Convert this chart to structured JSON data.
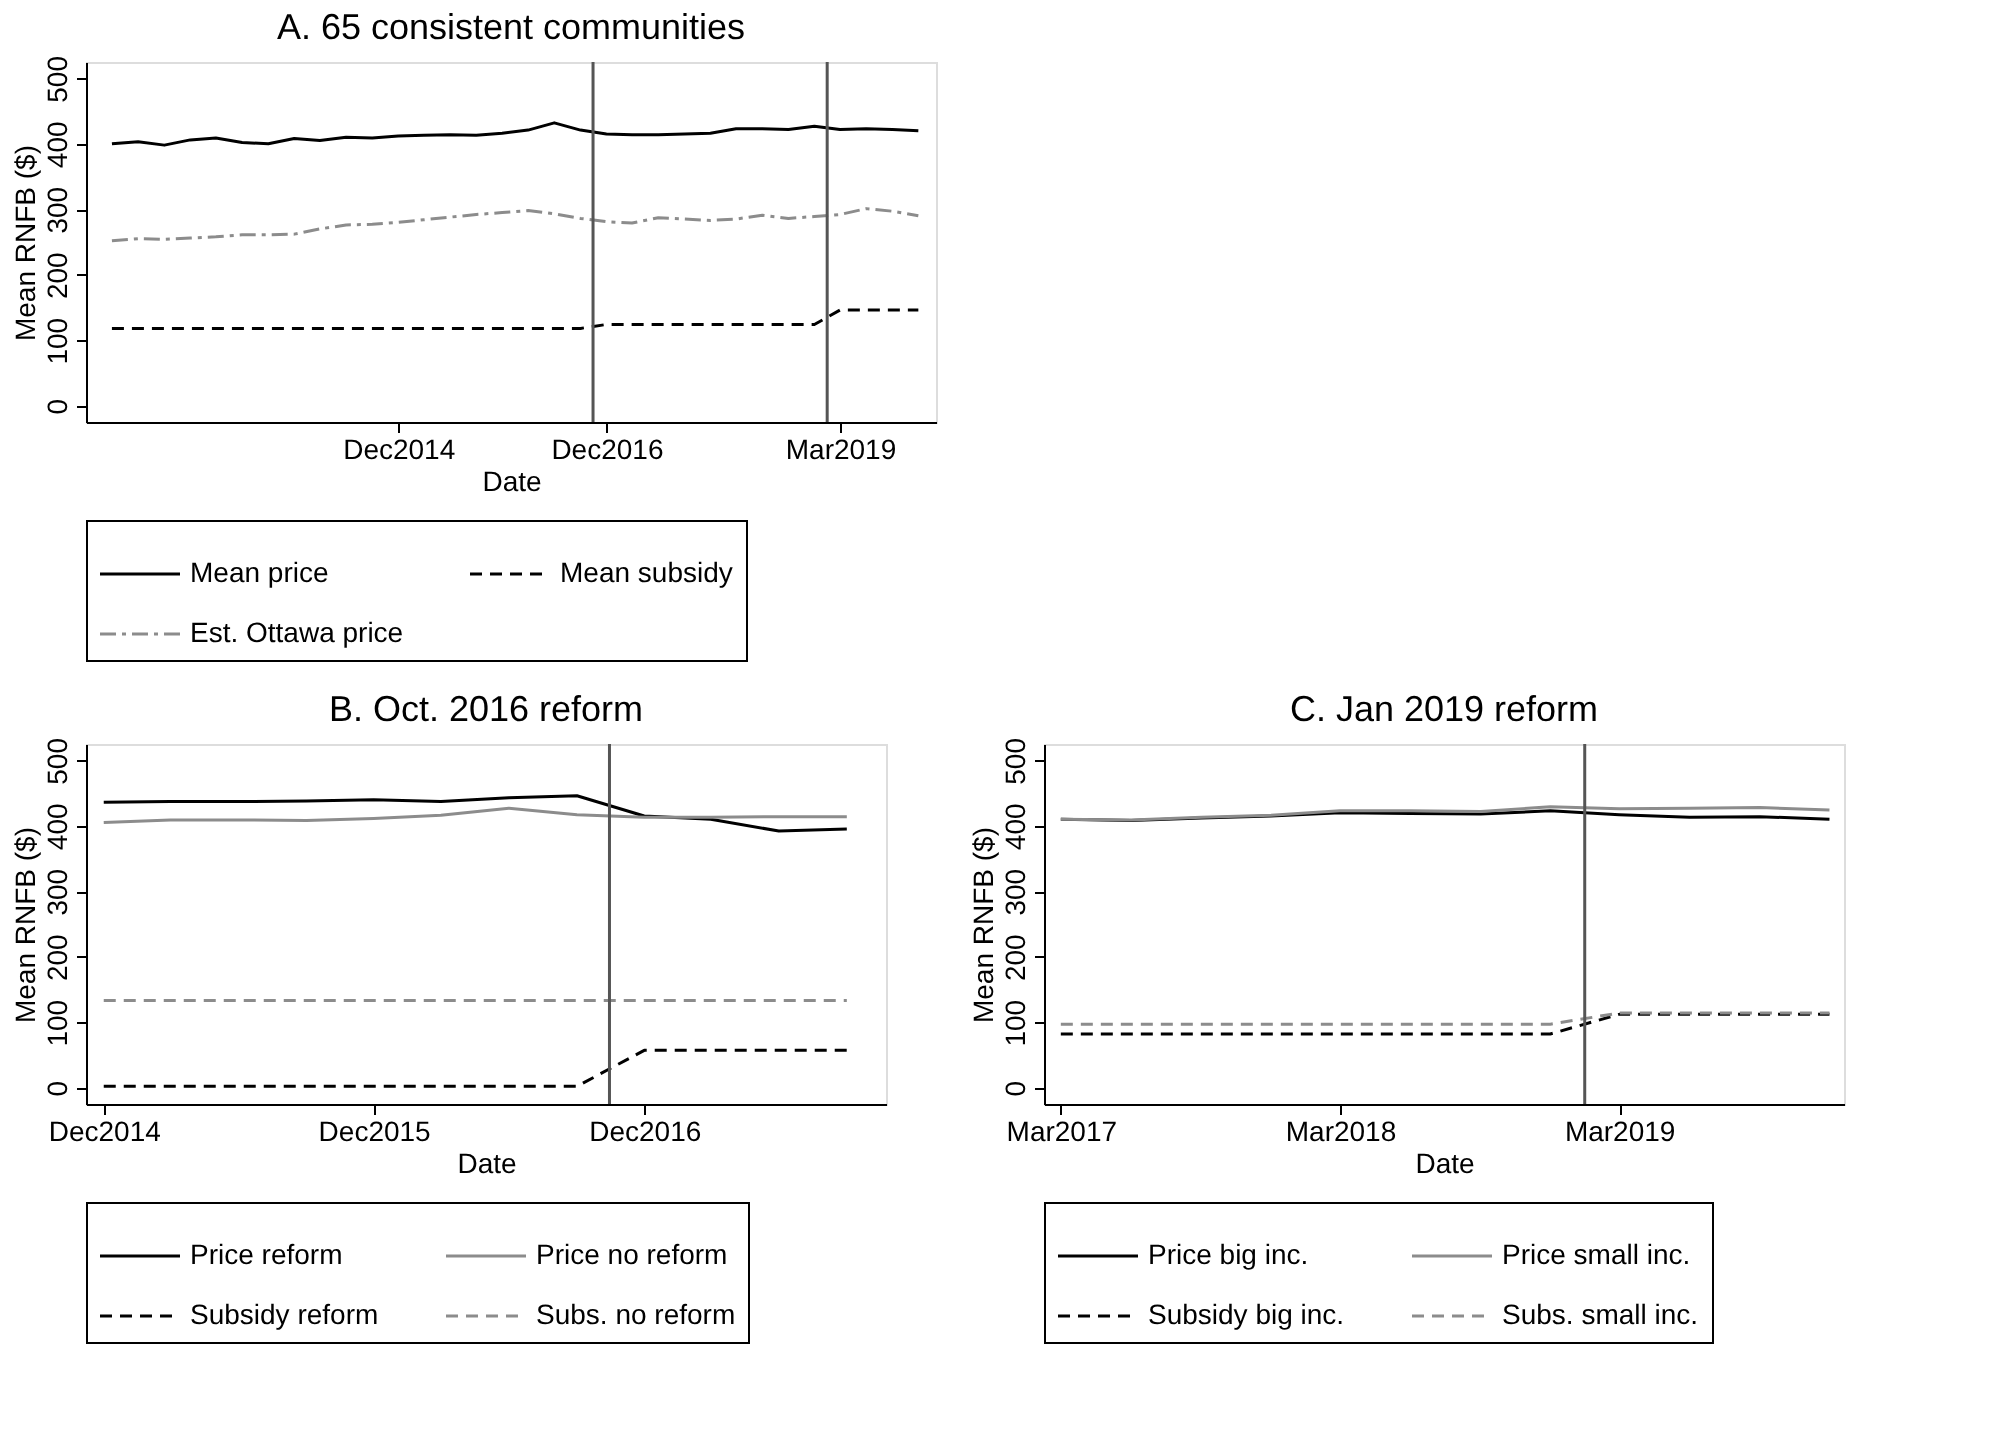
{
  "chart_data": [
    {
      "type": "line",
      "title": "A. 65 consistent communities",
      "xlabel": "Date",
      "ylabel": "Mean RNFB ($)",
      "x": [
        "2012-03",
        "2012-06",
        "2012-09",
        "2012-12",
        "2013-03",
        "2013-06",
        "2013-09",
        "2013-12",
        "2014-03",
        "2014-06",
        "2014-09",
        "2014-12",
        "2015-03",
        "2015-06",
        "2015-09",
        "2015-12",
        "2016-03",
        "2016-06",
        "2016-09",
        "2016-12",
        "2017-03",
        "2017-06",
        "2017-09",
        "2017-12",
        "2018-03",
        "2018-06",
        "2018-09",
        "2018-12",
        "2019-03",
        "2019-06",
        "2019-09",
        "2019-12"
      ],
      "series": [
        {
          "name": "Mean price",
          "color": "#000000",
          "line_style": "solid",
          "values": [
            400,
            403,
            398,
            406,
            409,
            402,
            400,
            408,
            405,
            410,
            409,
            412,
            413,
            414,
            413,
            416,
            421,
            432,
            421,
            415,
            414,
            414,
            415,
            416,
            423,
            423,
            422,
            427,
            422,
            423,
            422,
            420
          ]
        },
        {
          "name": "Mean subsidy",
          "color": "#000000",
          "line_style": "dashed",
          "values": [
            118,
            118,
            118,
            118,
            118,
            118,
            118,
            118,
            118,
            118,
            118,
            118,
            118,
            118,
            118,
            118,
            118,
            118,
            118,
            124,
            124,
            124,
            124,
            124,
            124,
            124,
            124,
            124,
            146,
            146,
            146,
            146
          ]
        },
        {
          "name": "Est. Ottawa price",
          "color": "#8c8c8c",
          "line_style": "dashdot",
          "values": [
            252,
            255,
            254,
            256,
            258,
            261,
            261,
            262,
            270,
            276,
            277,
            280,
            284,
            288,
            292,
            295,
            298,
            293,
            286,
            281,
            279,
            287,
            285,
            283,
            285,
            291,
            286,
            289,
            292,
            301,
            297,
            290
          ]
        }
      ],
      "xlim": [
        "2011-12-01",
        "2020-02-01"
      ],
      "ylim": [
        -25,
        525
      ],
      "yticks": [
        0,
        100,
        200,
        300,
        400,
        500
      ],
      "xticks": [
        {
          "value": "2014-12",
          "label": "Dec2014"
        },
        {
          "value": "2016-12",
          "label": "Dec2016"
        },
        {
          "value": "2019-03",
          "label": "Mar2019"
        }
      ],
      "ref_lines": [
        {
          "axis": "x",
          "value": "2016-10-15",
          "color": "#555555"
        },
        {
          "axis": "x",
          "value": "2019-01-15",
          "color": "#555555"
        }
      ],
      "legend": "bottom",
      "grid": false
    },
    {
      "type": "line",
      "title": "B. Oct. 2016 reform",
      "xlabel": "Date",
      "ylabel": "Mean RNFB ($)",
      "x": [
        "2014-12",
        "2015-03",
        "2015-06",
        "2015-09",
        "2015-12",
        "2016-03",
        "2016-06",
        "2016-09",
        "2016-12",
        "2017-03",
        "2017-06",
        "2017-09"
      ],
      "series": [
        {
          "name": "Price reform",
          "color": "#000000",
          "line_style": "solid",
          "values": [
            436,
            437,
            437,
            438,
            440,
            437,
            443,
            446,
            415,
            410,
            392,
            395
          ]
        },
        {
          "name": "Price no reform",
          "color": "#8c8c8c",
          "line_style": "solid",
          "values": [
            405,
            409,
            409,
            408,
            411,
            416,
            427,
            417,
            413,
            413,
            414,
            414
          ]
        },
        {
          "name": "Subsidy reform",
          "color": "#000000",
          "line_style": "dashed",
          "values": [
            2,
            2,
            2,
            2,
            2,
            2,
            2,
            2,
            57,
            57,
            57,
            57
          ]
        },
        {
          "name": "Subs. no reform",
          "color": "#8c8c8c",
          "line_style": "dashed",
          "values": [
            133,
            133,
            133,
            133,
            133,
            133,
            133,
            133,
            133,
            133,
            133,
            133
          ]
        }
      ],
      "xlim": [
        "2014-11-07",
        "2017-10-24"
      ],
      "ylim": [
        -25,
        525
      ],
      "yticks": [
        0,
        100,
        200,
        300,
        400,
        500
      ],
      "xticks": [
        {
          "value": "2014-12",
          "label": "Dec2014"
        },
        {
          "value": "2015-12",
          "label": "Dec2015"
        },
        {
          "value": "2016-12",
          "label": "Dec2016"
        }
      ],
      "ref_lines": [
        {
          "axis": "x",
          "value": "2016-10-15",
          "color": "#555555"
        }
      ],
      "legend": "bottom",
      "grid": false
    },
    {
      "type": "line",
      "title": "C. Jan 2019 reform",
      "xlabel": "Date",
      "ylabel": "Mean RNFB ($)",
      "x": [
        "2017-03",
        "2017-06",
        "2017-09",
        "2017-12",
        "2018-03",
        "2018-06",
        "2018-09",
        "2018-12",
        "2019-03",
        "2019-06",
        "2019-09",
        "2019-12"
      ],
      "series": [
        {
          "name": "Price big inc.",
          "color": "#000000",
          "line_style": "solid",
          "values": [
            410,
            408,
            412,
            415,
            420,
            419,
            418,
            423,
            417,
            413,
            414,
            410
          ]
        },
        {
          "name": "Price small inc.",
          "color": "#8c8c8c",
          "line_style": "solid",
          "values": [
            410,
            409,
            413,
            416,
            423,
            423,
            422,
            429,
            426,
            427,
            428,
            424
          ]
        },
        {
          "name": "Subsidy big inc.",
          "color": "#000000",
          "line_style": "dashed",
          "values": [
            82,
            82,
            82,
            82,
            82,
            82,
            82,
            82,
            112,
            112,
            112,
            112
          ]
        },
        {
          "name": "Subs. small inc.",
          "color": "#8c8c8c",
          "line_style": "dashed",
          "values": [
            97,
            97,
            97,
            97,
            97,
            97,
            97,
            97,
            114,
            114,
            114,
            114
          ]
        }
      ],
      "xlim": [
        "2017-02-07",
        "2019-12-20"
      ],
      "ylim": [
        -25,
        525
      ],
      "yticks": [
        0,
        100,
        200,
        300,
        400,
        500
      ],
      "xticks": [
        {
          "value": "2017-03",
          "label": "Mar2017"
        },
        {
          "value": "2018-03",
          "label": "Mar2018"
        },
        {
          "value": "2019-03",
          "label": "Mar2019"
        }
      ],
      "ref_lines": [
        {
          "axis": "x",
          "value": "2019-01-15",
          "color": "#555555"
        }
      ],
      "legend": "bottom",
      "grid": false
    }
  ]
}
